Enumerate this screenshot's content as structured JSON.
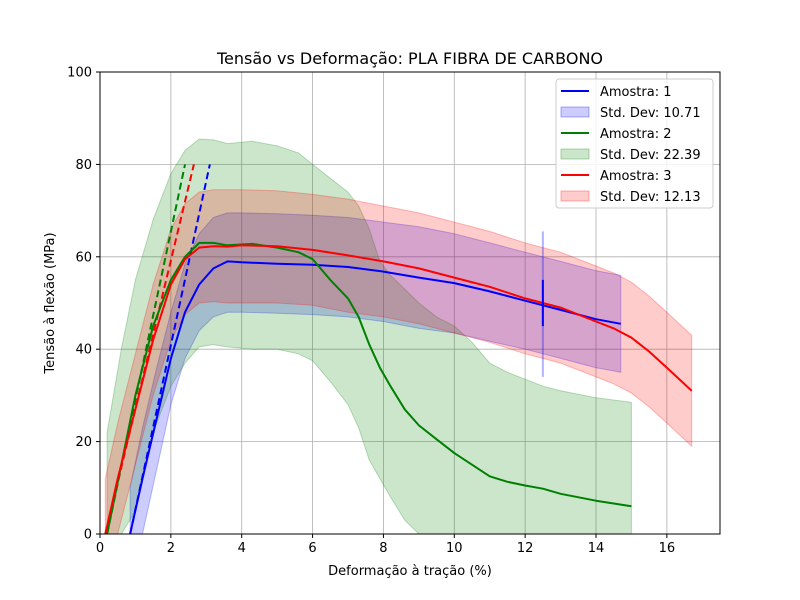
{
  "chart_data": {
    "type": "line",
    "title": "Tensão vs Deformação: PLA FIBRA DE CARBONO",
    "xlabel": "Deformação à tração (%)",
    "ylabel": "Tensão à flexão (MPa)",
    "xlim": [
      0,
      17.5
    ],
    "ylim": [
      0,
      100
    ],
    "xticks": [
      0,
      2,
      4,
      6,
      8,
      10,
      12,
      14,
      16
    ],
    "yticks": [
      0,
      20,
      40,
      60,
      80,
      100
    ],
    "grid": true,
    "legend_position": "top-right",
    "series": [
      {
        "name": "Amostra: 1",
        "band_label": "Std. Dev: 10.71",
        "color": "#0000ff",
        "x": [
          0.85,
          1.2,
          1.6,
          2.0,
          2.4,
          2.8,
          3.2,
          3.6,
          4.0,
          5.0,
          6.0,
          7.0,
          8.0,
          9.0,
          10.0,
          11.0,
          12.0,
          12.5,
          13.0,
          14.0,
          14.7
        ],
        "y": [
          0,
          12,
          25,
          38,
          48,
          54,
          57.5,
          59,
          58.8,
          58.5,
          58.3,
          57.8,
          56.8,
          55.5,
          54.3,
          52.5,
          50.5,
          49.5,
          48.5,
          46.5,
          45.5
        ],
        "upper": [
          0,
          0,
          0,
          0,
          0,
          0,
          0,
          0,
          0,
          0,
          0,
          0,
          0,
          0,
          0,
          0,
          0,
          0,
          0,
          0,
          0
        ],
        "lower": [
          0,
          0,
          0,
          0,
          0,
          0,
          0,
          0,
          0,
          0,
          0,
          0,
          0,
          0,
          0,
          0,
          0,
          0,
          0,
          0,
          0
        ],
        "spike": {
          "x": 12.5,
          "low": 45,
          "high": 55,
          "band_low": 34,
          "band_high": 65.5
        },
        "fit_line": {
          "x": [
            0.85,
            3.1
          ],
          "y": [
            0,
            80
          ]
        }
      },
      {
        "name": "Amostra: 2",
        "band_label": "Std. Dev: 22.39",
        "color": "#008000",
        "x": [
          0.2,
          0.6,
          1.0,
          1.5,
          2.0,
          2.4,
          2.8,
          3.2,
          3.6,
          4.3,
          5.0,
          5.6,
          6.0,
          6.5,
          7.0,
          7.3,
          7.6,
          7.9,
          8.2,
          8.6,
          9.0,
          9.5,
          10.0,
          10.5,
          11.0,
          11.5,
          12.0,
          12.5,
          13.0,
          14.0,
          15.0
        ],
        "y": [
          0,
          15,
          30,
          45,
          55,
          60,
          63,
          63,
          62.5,
          62.8,
          62,
          61,
          59.5,
          55,
          51,
          47,
          41,
          36,
          32,
          27,
          23.5,
          20.5,
          17.5,
          15,
          12.5,
          11.3,
          10.5,
          9.8,
          8.7,
          7.2,
          6
        ],
        "upper": [
          0,
          0,
          0,
          0,
          0,
          0,
          0,
          0,
          0,
          0,
          0,
          0,
          0,
          0,
          0,
          0,
          0,
          0,
          0,
          0,
          0,
          0,
          0,
          0,
          0,
          0,
          0,
          0,
          0,
          0,
          0
        ],
        "lower": [
          0,
          0,
          0,
          0,
          0,
          0,
          0,
          0,
          0,
          0,
          0,
          0,
          0,
          0,
          0,
          0,
          0,
          0,
          0,
          0,
          0,
          0,
          0,
          0,
          0,
          0,
          0,
          0,
          0,
          0,
          0
        ],
        "fit_line": {
          "x": [
            0.2,
            2.4
          ],
          "y": [
            0,
            80
          ]
        }
      },
      {
        "name": "Amostra: 3",
        "band_label": "Std. Dev: 12.13",
        "color": "#ff0000",
        "x": [
          0.15,
          0.5,
          1.0,
          1.5,
          2.0,
          2.4,
          2.8,
          3.2,
          3.6,
          4.0,
          5.0,
          6.0,
          7.0,
          8.0,
          9.0,
          10.0,
          11.0,
          12.0,
          12.5,
          13.0,
          14.0,
          14.5,
          15.0,
          15.5,
          16.0,
          16.7
        ],
        "y": [
          0,
          12,
          27,
          42,
          54,
          59.5,
          62,
          62.3,
          62.2,
          62.5,
          62.3,
          61.5,
          60.3,
          59,
          57.5,
          55.5,
          53.5,
          51,
          50,
          49,
          46,
          44.5,
          42.5,
          39.5,
          36,
          31
        ],
        "upper": [
          0,
          0,
          0,
          0,
          0,
          0,
          0,
          0,
          0,
          0,
          0,
          0,
          0,
          0,
          0,
          0,
          0,
          0,
          0,
          0,
          0,
          0,
          0,
          0,
          0,
          0
        ],
        "lower": [
          0,
          0,
          0,
          0,
          0,
          0,
          0,
          0,
          0,
          0,
          0,
          0,
          0,
          0,
          0,
          0,
          0,
          0,
          0,
          0,
          0,
          0,
          0,
          0,
          0,
          0
        ],
        "fit_line": {
          "x": [
            0.15,
            2.65
          ],
          "y": [
            0,
            80
          ]
        }
      }
    ],
    "bands": {
      "s1": {
        "x": [
          0.85,
          1.2,
          1.6,
          2.0,
          2.4,
          2.8,
          3.2,
          3.6,
          4.0,
          5.0,
          6.0,
          7.0,
          8.0,
          9.0,
          10.0,
          11.0,
          12.0,
          12.5,
          13.0,
          14.0,
          14.7
        ],
        "upper": [
          10,
          23,
          36,
          48,
          58.5,
          65,
          68.5,
          69.5,
          69.5,
          69.3,
          69,
          68.5,
          67.5,
          66.5,
          65,
          63,
          61,
          60,
          59,
          57,
          56
        ],
        "lower": [
          0,
          0,
          14,
          28,
          38,
          44,
          47,
          48,
          48,
          47.8,
          47.5,
          47,
          46,
          44.5,
          43.5,
          41.7,
          40,
          39,
          38,
          36,
          35
        ]
      },
      "s2": {
        "x": [
          0.2,
          0.6,
          1.0,
          1.5,
          2.0,
          2.4,
          2.8,
          3.2,
          3.6,
          4.3,
          5.0,
          5.6,
          6.0,
          6.5,
          7.0,
          7.3,
          7.6,
          7.9,
          8.2,
          8.6,
          9.0,
          9.5,
          10.0,
          10.5,
          11.0,
          11.5,
          12.0,
          12.5,
          13.0,
          14.0,
          15.0
        ],
        "upper": [
          22,
          40,
          55,
          68,
          78,
          83,
          85.5,
          85.3,
          84.5,
          85,
          84,
          82.5,
          80,
          77,
          74,
          71,
          66,
          59,
          56,
          53,
          50,
          47,
          45,
          41.5,
          37,
          35,
          33.5,
          32,
          31,
          29.5,
          28.5
        ],
        "lower": [
          0,
          0,
          5,
          22,
          32,
          37,
          40.5,
          41,
          40.5,
          40,
          40,
          39,
          37.5,
          33,
          28,
          23,
          16,
          12,
          8,
          3,
          0,
          0,
          0,
          0,
          0,
          0,
          0,
          0,
          0,
          0,
          0
        ]
      },
      "s3": {
        "x": [
          0.15,
          0.5,
          1.0,
          1.5,
          2.0,
          2.4,
          2.8,
          3.2,
          3.6,
          4.0,
          5.0,
          6.0,
          7.0,
          8.0,
          9.0,
          10.0,
          11.0,
          12.0,
          12.5,
          13.0,
          14.0,
          14.5,
          15.0,
          15.5,
          16.0,
          16.7
        ],
        "upper": [
          12,
          24,
          39,
          54,
          66,
          71.5,
          74,
          74.5,
          74.5,
          74.5,
          74.3,
          73.5,
          72.5,
          71,
          69.5,
          67.5,
          65.5,
          63,
          62,
          61,
          58,
          56.5,
          54.5,
          51.5,
          48,
          43
        ],
        "lower": [
          0,
          0,
          15,
          30,
          42,
          47.5,
          50,
          50.3,
          50,
          50,
          50,
          49.5,
          48,
          47,
          45.5,
          43.5,
          41.5,
          39,
          38,
          37,
          34,
          32.5,
          30.5,
          27.5,
          24,
          19
        ]
      }
    }
  }
}
